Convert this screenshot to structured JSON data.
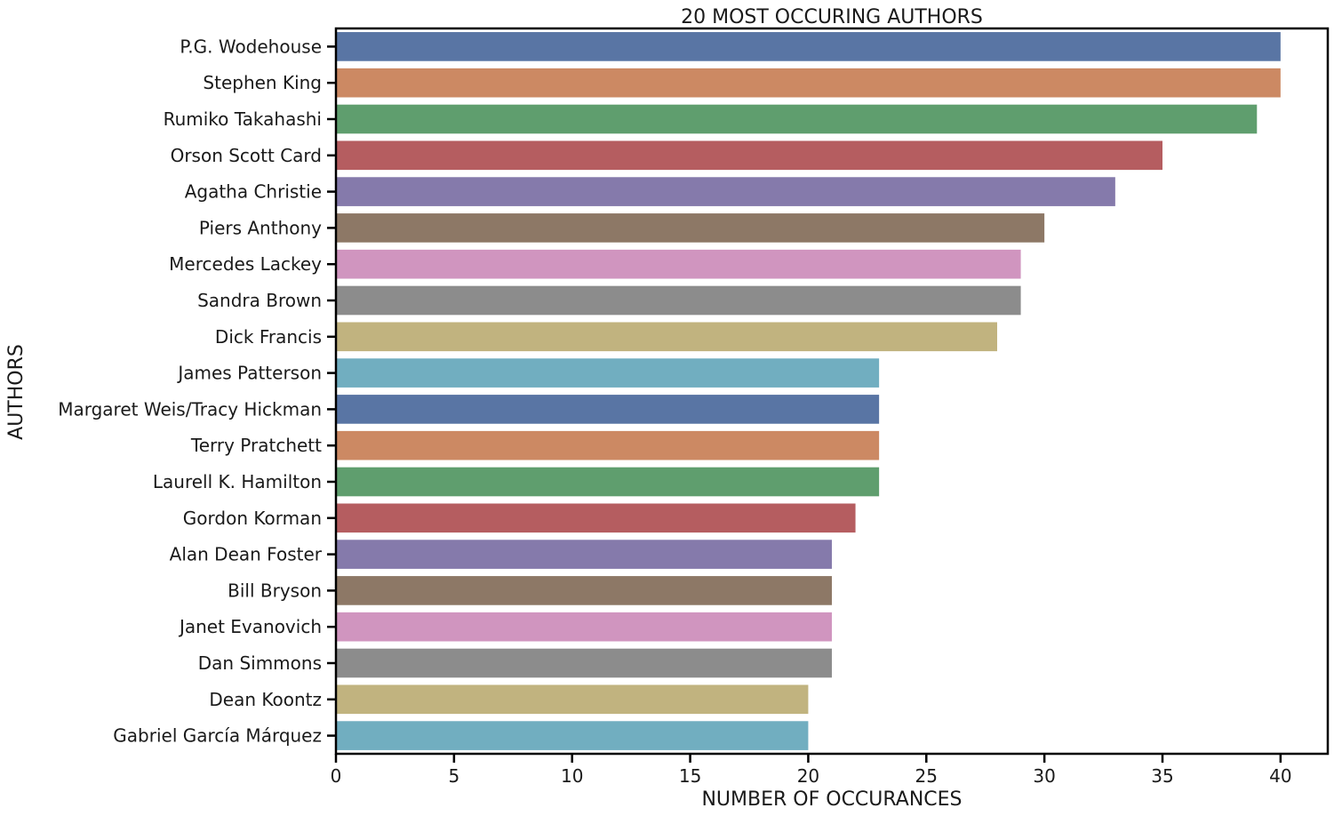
{
  "chart_data": {
    "type": "bar",
    "orientation": "horizontal",
    "title": "20 MOST OCCURING AUTHORS",
    "xlabel": "NUMBER OF OCCURANCES",
    "ylabel": "AUTHORS",
    "xlim": [
      0,
      42
    ],
    "xticks": [
      0,
      5,
      10,
      15,
      20,
      25,
      30,
      35,
      40
    ],
    "categories": [
      "P.G. Wodehouse",
      "Stephen King",
      "Rumiko Takahashi",
      "Orson Scott Card",
      "Agatha Christie",
      "Piers Anthony",
      "Mercedes Lackey",
      "Sandra Brown",
      "Dick Francis",
      "James Patterson",
      "Margaret Weis/Tracy Hickman",
      "Terry Pratchett",
      "Laurell K. Hamilton",
      "Gordon Korman",
      "Alan Dean Foster",
      "Bill Bryson",
      "Janet Evanovich",
      "Dan Simmons",
      "Dean Koontz",
      "Gabriel García Márquez"
    ],
    "values": [
      40,
      40,
      39,
      35,
      33,
      30,
      29,
      29,
      28,
      23,
      23,
      23,
      23,
      22,
      21,
      21,
      21,
      21,
      20,
      20
    ],
    "colors": [
      "#5975a4",
      "#cc8963",
      "#5f9e6e",
      "#b55d60",
      "#857aab",
      "#8d7866",
      "#d095bf",
      "#8c8c8c",
      "#c1b37f",
      "#71aec0"
    ],
    "grid": false,
    "legend": "none"
  }
}
